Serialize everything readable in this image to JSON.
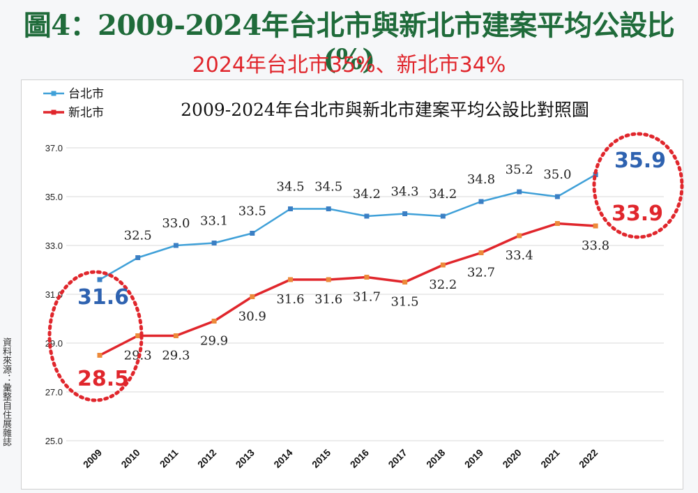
{
  "header": {
    "title": "圖4：2009-2024年台北市與新北市建案平均公設比(%)",
    "subtitle": "2024年台北市35%、新北市34%",
    "source": "資料來源：彙整自住展雜誌"
  },
  "chart_data": {
    "type": "line",
    "title": "2009-2024年台北市與新北市建案平均公設比對照圖",
    "categories": [
      "2009",
      "2010",
      "2011",
      "2012",
      "2013",
      "2014",
      "2015",
      "2016",
      "2017",
      "2018",
      "2019",
      "2020",
      "2021",
      "2022"
    ],
    "ylim": [
      25.0,
      37.0
    ],
    "yticks": [
      "25.0",
      "27.0",
      "29.0",
      "31.0",
      "33.0",
      "35.0",
      "37.0"
    ],
    "grid": true,
    "legend_position": "top-left",
    "series": [
      {
        "name": "台北市",
        "color": "#3fa0d8",
        "values": [
          31.6,
          32.5,
          33.0,
          33.1,
          33.5,
          34.5,
          34.5,
          34.2,
          34.3,
          34.2,
          34.8,
          35.2,
          35.0,
          35.9
        ],
        "labels": [
          "",
          "32.5",
          "33.0",
          "33.1",
          "33.5",
          "34.5",
          "34.5",
          "34.2",
          "34.3",
          "34.2",
          "34.8",
          "35.2",
          "35.0",
          ""
        ]
      },
      {
        "name": "新北市",
        "color": "#e0262c",
        "values": [
          28.5,
          29.3,
          29.3,
          29.9,
          30.9,
          31.6,
          31.6,
          31.7,
          31.5,
          32.2,
          32.7,
          33.4,
          33.9,
          33.8
        ],
        "labels": [
          "",
          "29.3",
          "29.3",
          "29.9",
          "30.9",
          "31.6",
          "31.6",
          "31.7",
          "31.5",
          "32.2",
          "32.7",
          "33.4",
          "",
          "33.8"
        ]
      }
    ],
    "callouts": [
      {
        "text": "31.6",
        "color": "#2e62b0"
      },
      {
        "text": "28.5",
        "color": "#e0262c"
      },
      {
        "text": "35.9",
        "color": "#2e62b0"
      },
      {
        "text": "33.9",
        "color": "#e0262c"
      }
    ],
    "highlight_color": "#e0262c"
  }
}
